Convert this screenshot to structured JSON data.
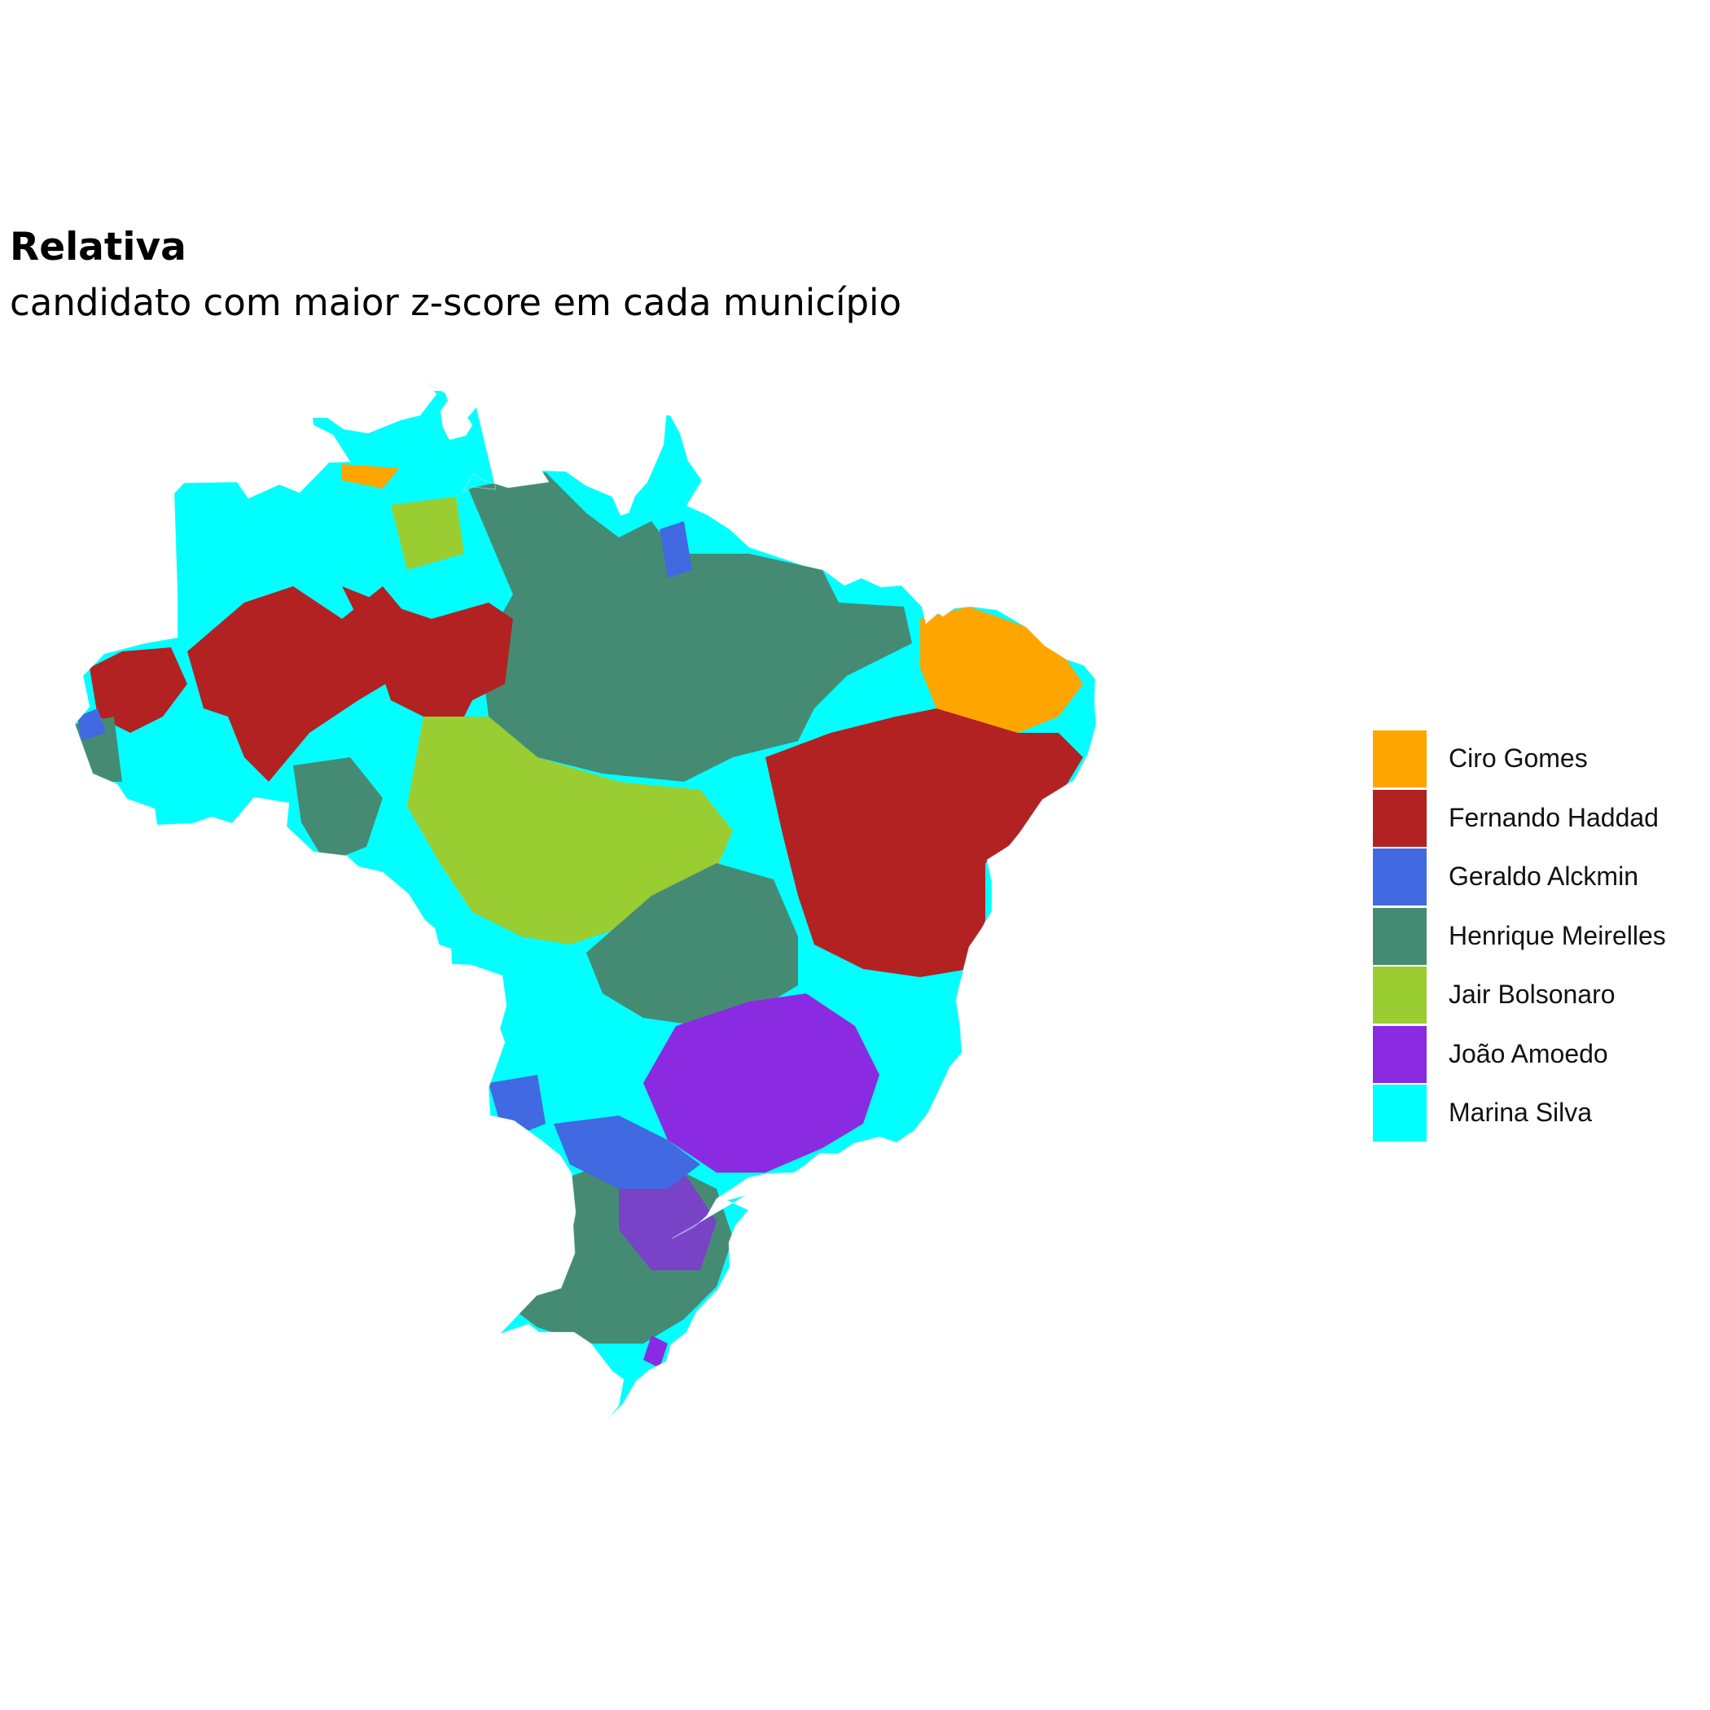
{
  "title": "Relativa",
  "subtitle": "candidato com maior z-score em cada município",
  "legend": {
    "items": [
      {
        "label": "Ciro Gomes",
        "color": "#FFA500"
      },
      {
        "label": "Fernando Haddad",
        "color": "#B22222"
      },
      {
        "label": "Geraldo Alckmin",
        "color": "#4169E1"
      },
      {
        "label": "Henrique Meirelles",
        "color": "#458B74"
      },
      {
        "label": "Jair Bolsonaro",
        "color": "#9ACD32"
      },
      {
        "label": "João Amoedo",
        "color": "#8A2BE2"
      },
      {
        "label": "Marina Silva",
        "color": "#00FFFF"
      }
    ]
  },
  "map": {
    "country": "Brasil",
    "regions": [
      {
        "name": "north-west-amazon",
        "candidate": "Marina Silva"
      },
      {
        "name": "amazon-interior-red",
        "candidate": "Fernando Haddad"
      },
      {
        "name": "para-central",
        "candidate": "Henrique Meirelles"
      },
      {
        "name": "central-west",
        "candidate": "Jair Bolsonaro"
      },
      {
        "name": "ceara",
        "candidate": "Ciro Gomes"
      },
      {
        "name": "northeast",
        "candidate": "Fernando Haddad"
      },
      {
        "name": "southeast-interior",
        "candidate": "João Amoedo"
      },
      {
        "name": "south",
        "candidate": "Henrique Meirelles"
      }
    ]
  }
}
